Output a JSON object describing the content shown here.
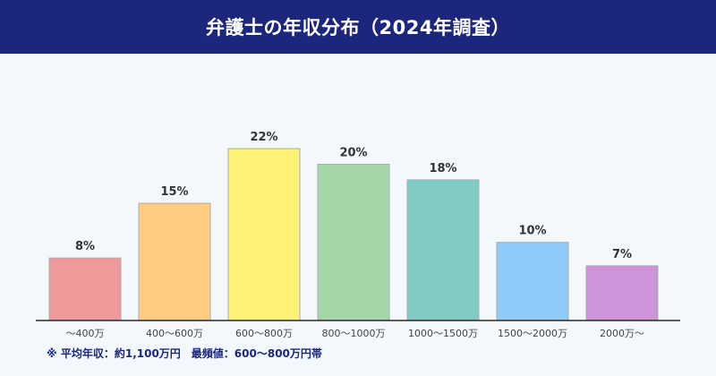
{
  "header": {
    "title": "弁護士の年収分布（2024年調査）"
  },
  "footnote": "※ 平均年収：約1,100万円　最頻値：600〜800万円帯",
  "colors": {
    "header_bg": "#1c267c",
    "page_bg": "#f3f8fd",
    "bar_border": "#a8acb4",
    "baseline": "#2a2a2a"
  },
  "chart_data": {
    "type": "bar",
    "title": "弁護士の年収分布（2024年調査）",
    "xlabel": "",
    "ylabel": "",
    "categories": [
      "〜400万",
      "400〜600万",
      "600〜800万",
      "800〜1000万",
      "1000〜1500万",
      "1500〜2000万",
      "2000万〜"
    ],
    "values": [
      8,
      15,
      22,
      20,
      18,
      10,
      7
    ],
    "value_labels": [
      "8%",
      "15%",
      "22%",
      "20%",
      "18%",
      "10%",
      "7%"
    ],
    "unit": "%",
    "ylim": [
      0,
      22
    ],
    "grid": false,
    "legend": "none",
    "bar_colors": [
      "#ef9a9a",
      "#ffcc80",
      "#fff176",
      "#a5d6a7",
      "#80cbc4",
      "#90caf9",
      "#ce93d8"
    ]
  }
}
